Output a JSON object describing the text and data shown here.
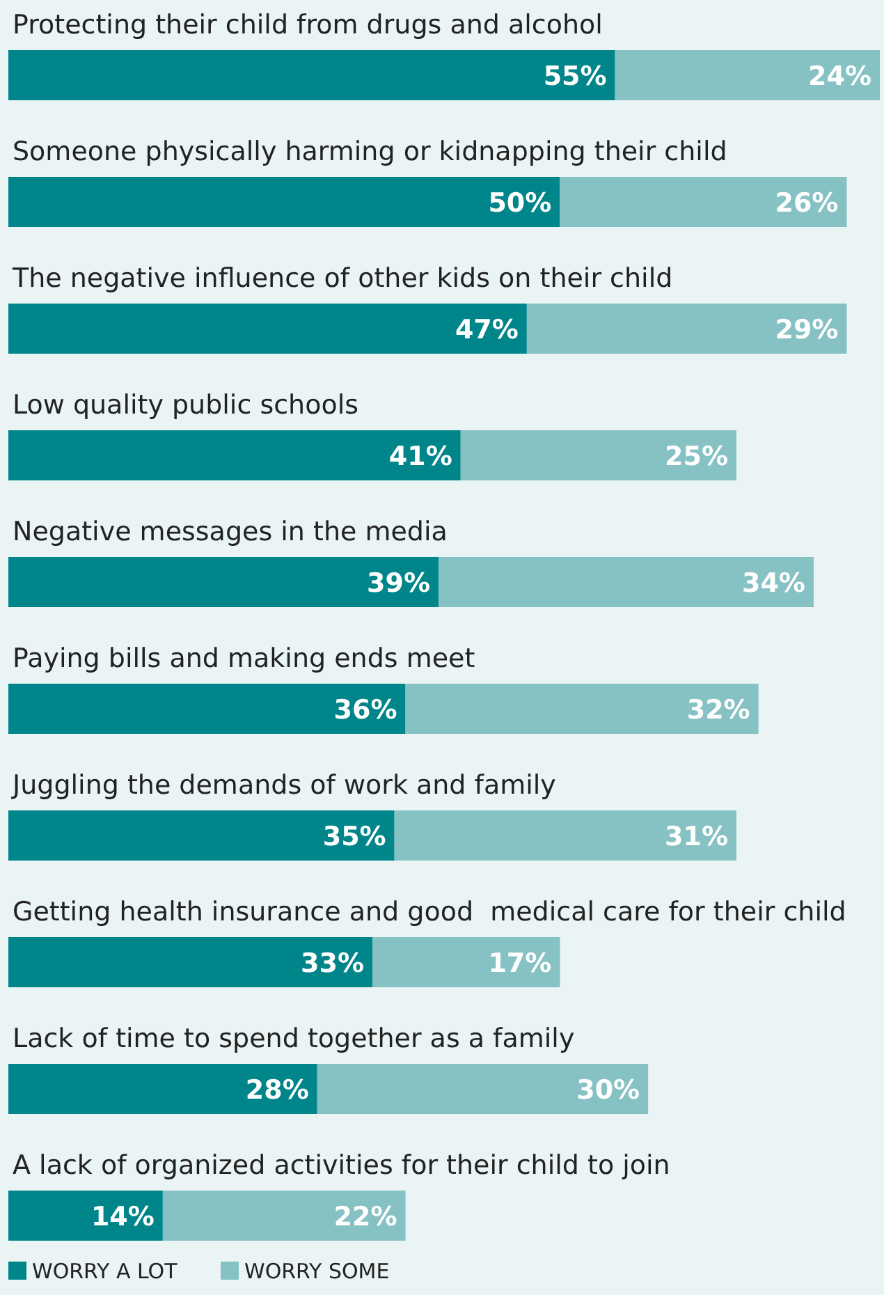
{
  "chart_data": {
    "type": "bar",
    "orientation": "horizontal",
    "stacked": true,
    "data_labels": true,
    "legend": "bottom left",
    "categories": [
      "Protecting their child from drugs and alcohol",
      "Someone physically harming or kidnapping their child",
      "The negative influence of other kids on their child",
      "Low quality public schools",
      "Negative messages in the media",
      "Paying bills and making ends meet",
      "Juggling the demands of work and family",
      "Getting health insurance and good  medical care for their child",
      "Lack of time to spend together as a family",
      "A lack of organized activities for their child to join"
    ],
    "series": [
      {
        "name": "WORRY A LOT",
        "color": "#00868a",
        "values": [
          55,
          50,
          47,
          41,
          39,
          36,
          35,
          33,
          28,
          14
        ],
        "value_labels": [
          "55%",
          "50%",
          "47%",
          "41%",
          "39%",
          "36%",
          "35%",
          "33%",
          "28%",
          "14%"
        ]
      },
      {
        "name": "WORRY SOME",
        "color": "#86c1c3",
        "values": [
          24,
          26,
          29,
          25,
          34,
          32,
          31,
          17,
          30,
          22
        ],
        "value_labels": [
          "24%",
          "26%",
          "29%",
          "25%",
          "34%",
          "32%",
          "31%",
          "17%",
          "30%",
          "22%"
        ]
      }
    ]
  }
}
